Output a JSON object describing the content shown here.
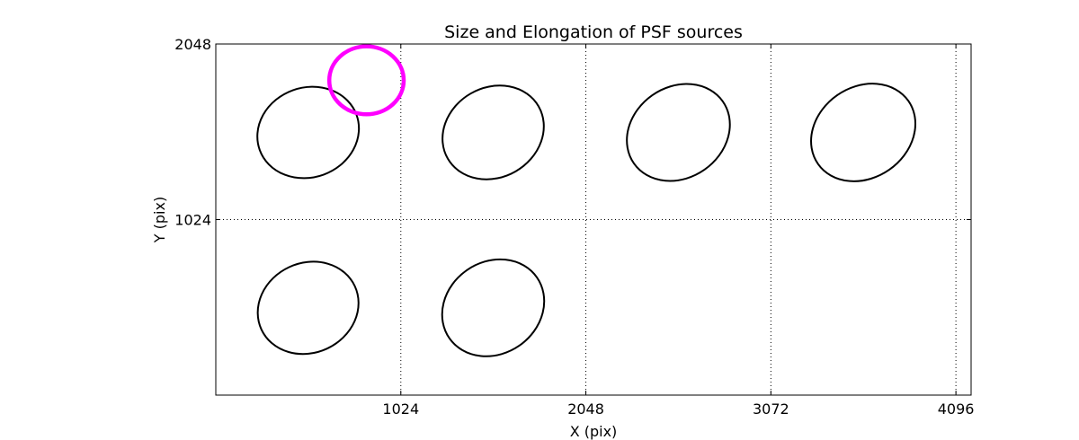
{
  "chart_data": {
    "type": "scatter",
    "title": "Size and Elongation of PSF sources",
    "xlabel": "X (pix)",
    "ylabel": "Y (pix)",
    "xlim": [
      0,
      4180
    ],
    "ylim": [
      0,
      2048
    ],
    "xticks": [
      1024,
      2048,
      3072,
      4096
    ],
    "xtick_labels": [
      "1024",
      "2048",
      "3072",
      "4096"
    ],
    "yticks": [
      1024,
      2048
    ],
    "ytick_labels": [
      "1024",
      "2048"
    ],
    "grid": true,
    "series": [
      {
        "color": "#000000",
        "ellipses": [
          {
            "x": 511,
            "y": 1532,
            "a": 285,
            "b": 262,
            "angle": -20
          },
          {
            "x": 1535,
            "y": 1532,
            "a": 290,
            "b": 262,
            "angle": -30
          },
          {
            "x": 2560,
            "y": 1532,
            "a": 300,
            "b": 265,
            "angle": -35
          },
          {
            "x": 3583,
            "y": 1532,
            "a": 305,
            "b": 265,
            "angle": -35
          },
          {
            "x": 511,
            "y": 509,
            "a": 285,
            "b": 262,
            "angle": -25
          },
          {
            "x": 1535,
            "y": 509,
            "a": 295,
            "b": 268,
            "angle": -35
          }
        ]
      },
      {
        "color": "#ff00ff",
        "ellipses": [
          {
            "x": 834,
            "y": 1836,
            "a": 206,
            "b": 198,
            "angle": 0
          }
        ]
      }
    ]
  }
}
